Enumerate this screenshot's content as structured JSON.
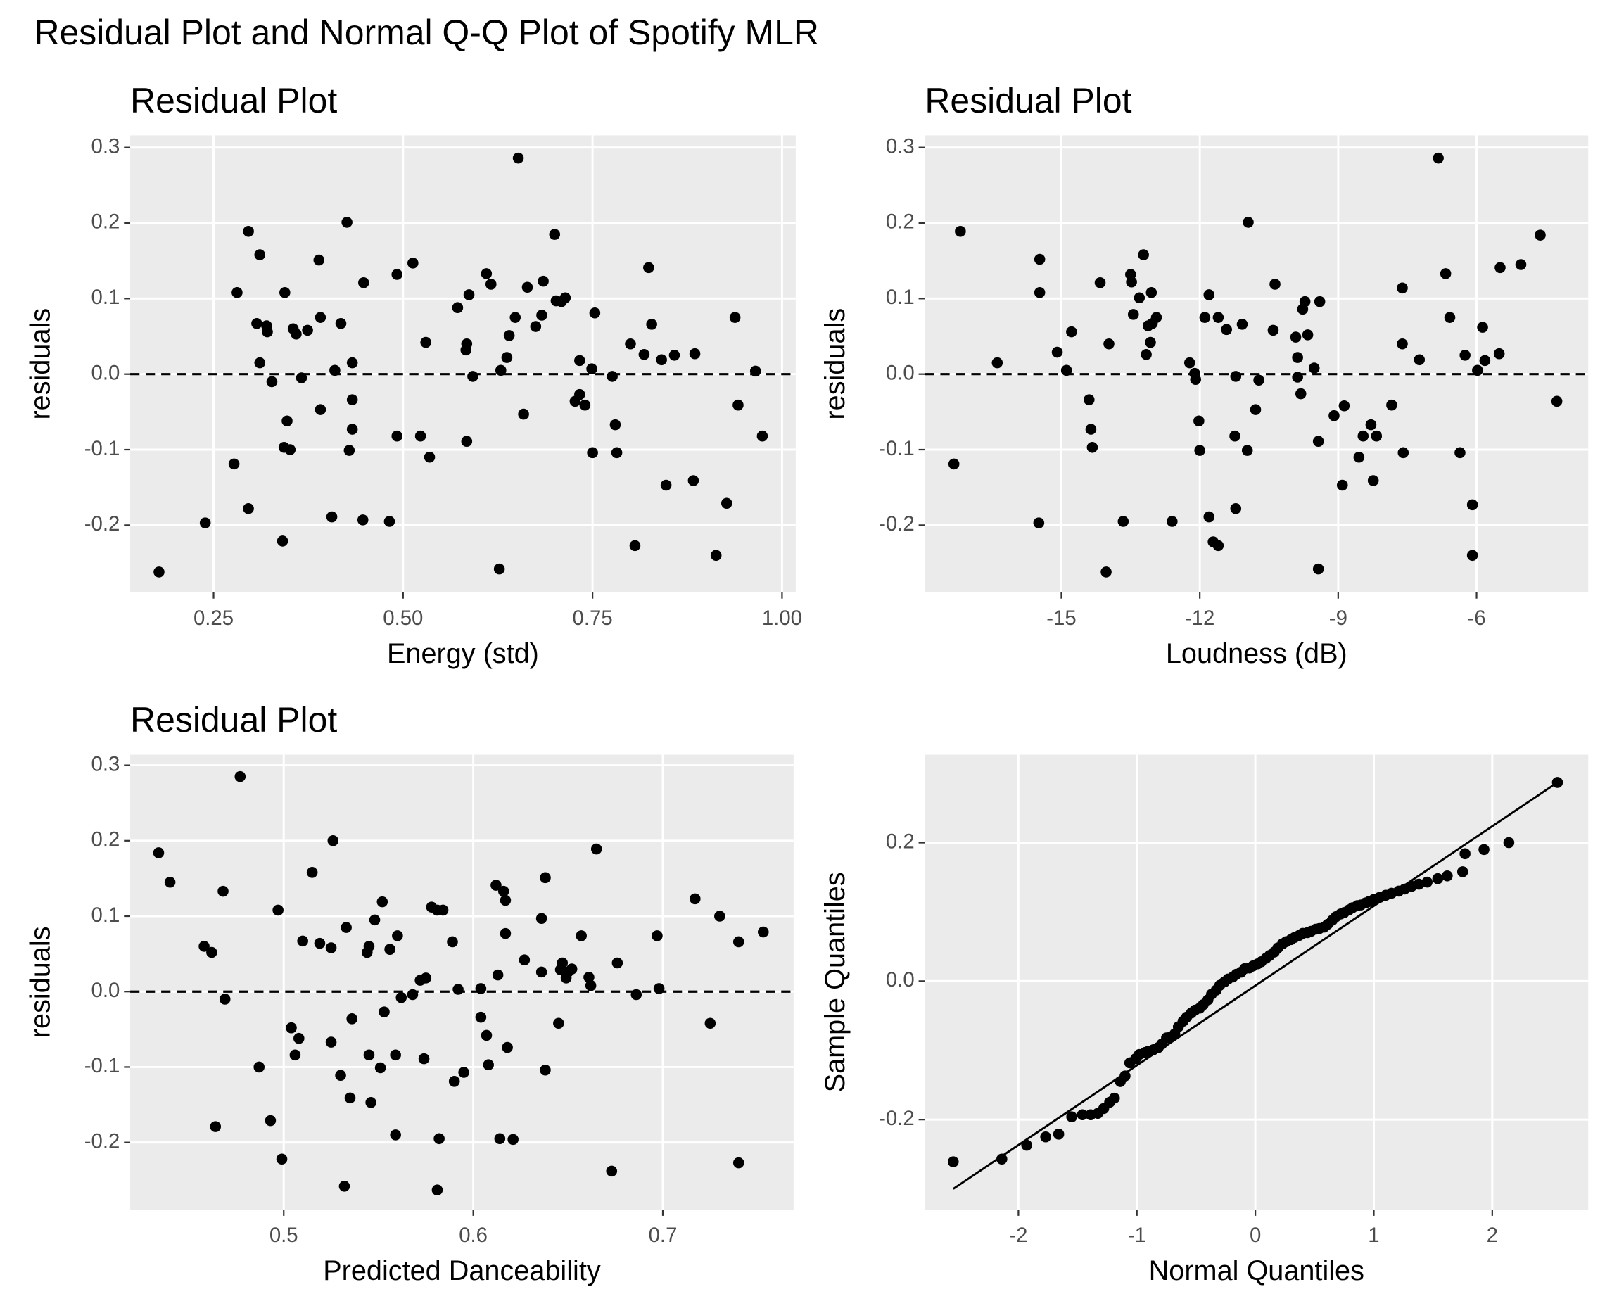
{
  "title": "Residual Plot and Normal Q-Q Plot of Spotify MLR",
  "chart_data": [
    {
      "type": "scatter",
      "title": "Residual Plot",
      "xlabel": "Energy (std)",
      "ylabel": "residuals",
      "color": "#000000",
      "grid": true,
      "hline": 0,
      "xlim": [
        0.14,
        1.018
      ],
      "ylim": [
        -0.289,
        0.316
      ],
      "xticks": [
        {
          "value": 0.25,
          "label": "0.25"
        },
        {
          "value": 0.5,
          "label": "0.50"
        },
        {
          "value": 0.75,
          "label": "0.75"
        },
        {
          "value": 1,
          "label": "1.00"
        }
      ],
      "yticks": [
        -0.2,
        -0.1,
        {
          "value": 0,
          "label": "0.0"
        },
        0.1,
        0.2,
        0.3
      ],
      "x": [
        0.178,
        0.239,
        0.277,
        0.281,
        0.296,
        0.296,
        0.307,
        0.311,
        0.311,
        0.32,
        0.321,
        0.327,
        0.341,
        0.344,
        0.343,
        0.347,
        0.351,
        0.355,
        0.359,
        0.366,
        0.374,
        0.389,
        0.391,
        0.391,
        0.406,
        0.41,
        0.418,
        0.426,
        0.429,
        0.433,
        0.433,
        0.433,
        0.447,
        0.448,
        0.482,
        0.492,
        0.492,
        0.513,
        0.523,
        0.53,
        0.535,
        0.572,
        0.583,
        0.584,
        0.584,
        0.587,
        0.592,
        0.61,
        0.616,
        0.629,
        0.627,
        0.637,
        0.64,
        0.648,
        0.652,
        0.659,
        0.664,
        0.675,
        0.683,
        0.685,
        0.7,
        0.702,
        0.709,
        0.714,
        0.727,
        0.733,
        0.733,
        0.74,
        0.749,
        0.75,
        0.753,
        0.776,
        0.78,
        0.782,
        0.8,
        0.806,
        0.818,
        0.824,
        0.828,
        0.841,
        0.847,
        0.858,
        0.883,
        0.885,
        0.913,
        0.927,
        0.938,
        0.942,
        0.965,
        0.974
      ],
      "values": [
        -0.262,
        -0.197,
        -0.119,
        0.108,
        0.189,
        -0.178,
        0.067,
        0.158,
        0.015,
        0.064,
        0.056,
        -0.01,
        -0.221,
        0.108,
        -0.097,
        -0.062,
        -0.1,
        0.06,
        0.053,
        -0.005,
        0.058,
        0.151,
        0.075,
        -0.047,
        -0.189,
        0.005,
        0.067,
        0.201,
        -0.101,
        0.015,
        -0.034,
        -0.073,
        -0.193,
        0.121,
        -0.195,
        0.132,
        -0.082,
        0.147,
        -0.082,
        0.042,
        -0.11,
        0.088,
        0.032,
        -0.089,
        0.04,
        0.105,
        -0.003,
        0.133,
        0.119,
        0.005,
        -0.258,
        0.022,
        0.051,
        0.075,
        0.286,
        -0.053,
        0.115,
        0.063,
        0.078,
        0.123,
        0.185,
        0.097,
        0.096,
        0.101,
        -0.036,
        -0.027,
        0.018,
        -0.041,
        0.007,
        -0.104,
        0.081,
        -0.003,
        -0.067,
        -0.104,
        0.04,
        -0.227,
        0.026,
        0.141,
        0.066,
        0.019,
        -0.147,
        0.025,
        -0.141,
        0.027,
        -0.24,
        -0.171,
        0.075,
        -0.041,
        0.004,
        -0.082
      ]
    },
    {
      "type": "scatter",
      "title": "Residual Plot",
      "xlabel": "Loudness (dB)",
      "ylabel": "residuals",
      "color": "#000000",
      "grid": true,
      "hline": 0,
      "xlim": [
        -17.96,
        -3.58
      ],
      "ylim": [
        -0.289,
        0.316
      ],
      "xticks": [
        -15,
        -12,
        -9,
        -6
      ],
      "yticks": [
        -0.2,
        -0.1,
        {
          "value": 0,
          "label": "0.0"
        },
        0.1,
        0.2,
        0.3
      ],
      "x": [
        -17.33,
        -17.19,
        -16.39,
        -15.47,
        -15.47,
        -15.49,
        -15.09,
        -14.89,
        -14.78,
        -14.4,
        -14.36,
        -14.33,
        -14.16,
        -14.03,
        -13.97,
        -13.66,
        -13.5,
        -13.48,
        -13.44,
        -13.31,
        -13.22,
        -13.16,
        -13.12,
        -13.07,
        -13.05,
        -13.03,
        -12.94,
        -12.6,
        -12.22,
        -12.11,
        -12.09,
        -12.02,
        -12.0,
        -11.89,
        -11.8,
        -11.8,
        -11.71,
        -11.6,
        -11.6,
        -11.42,
        -11.22,
        -11.24,
        -11.22,
        -11.08,
        -10.97,
        -10.95,
        -10.79,
        -10.72,
        -10.41,
        -10.37,
        -9.92,
        -9.88,
        -9.88,
        -9.81,
        -9.77,
        -9.72,
        -9.66,
        -9.52,
        -9.4,
        -9.43,
        -9.43,
        -9.09,
        -8.91,
        -8.87,
        -8.55,
        -8.46,
        -8.29,
        -8.24,
        -8.17,
        -7.84,
        -7.61,
        -7.61,
        -7.59,
        -7.24,
        -6.83,
        -6.67,
        -6.58,
        -6.36,
        -6.25,
        -6.09,
        -6.09,
        -5.98,
        -5.87,
        -5.82,
        -5.51,
        -5.49,
        -5.04,
        -4.62,
        -4.26
      ],
      "values": [
        -0.119,
        0.189,
        0.015,
        0.152,
        0.108,
        -0.197,
        0.029,
        0.005,
        0.056,
        -0.034,
        -0.073,
        -0.097,
        0.121,
        -0.262,
        0.04,
        -0.195,
        0.132,
        0.122,
        0.079,
        0.101,
        0.158,
        0.026,
        0.064,
        0.042,
        0.108,
        0.067,
        0.075,
        -0.195,
        0.015,
        0.001,
        -0.007,
        -0.062,
        -0.101,
        0.075,
        0.105,
        -0.189,
        -0.222,
        -0.227,
        0.075,
        0.059,
        -0.003,
        -0.082,
        -0.178,
        0.066,
        -0.101,
        0.201,
        -0.047,
        -0.008,
        0.058,
        0.119,
        0.049,
        0.022,
        -0.004,
        -0.026,
        0.086,
        0.096,
        0.052,
        0.008,
        0.096,
        -0.089,
        -0.258,
        -0.055,
        -0.147,
        -0.042,
        -0.11,
        -0.082,
        -0.067,
        -0.141,
        -0.082,
        -0.041,
        0.114,
        0.04,
        -0.104,
        0.019,
        0.286,
        0.133,
        0.075,
        -0.104,
        0.025,
        -0.173,
        -0.24,
        0.005,
        0.062,
        0.018,
        0.027,
        0.141,
        0.145,
        0.184,
        -0.036
      ]
    },
    {
      "type": "scatter",
      "title": "Residual Plot",
      "xlabel": "Predicted Danceability",
      "ylabel": "residuals",
      "color": "#000000",
      "grid": true,
      "hline": 0,
      "xlim": [
        0.419,
        0.769
      ],
      "ylim": [
        -0.289,
        0.314
      ],
      "xticks": [
        0.5,
        0.6,
        0.7
      ],
      "yticks": [
        -0.2,
        -0.1,
        {
          "value": 0,
          "label": "0.0"
        },
        0.1,
        0.2,
        0.3
      ],
      "x": [
        0.434,
        0.44,
        0.458,
        0.462,
        0.464,
        0.468,
        0.469,
        0.477,
        0.487,
        0.493,
        0.497,
        0.499,
        0.504,
        0.506,
        0.508,
        0.51,
        0.515,
        0.519,
        0.525,
        0.525,
        0.526,
        0.53,
        0.532,
        0.533,
        0.536,
        0.535,
        0.544,
        0.545,
        0.545,
        0.546,
        0.548,
        0.551,
        0.552,
        0.553,
        0.556,
        0.559,
        0.559,
        0.56,
        0.562,
        0.568,
        0.572,
        0.574,
        0.575,
        0.578,
        0.581,
        0.582,
        0.581,
        0.584,
        0.589,
        0.59,
        0.592,
        0.595,
        0.604,
        0.604,
        0.607,
        0.608,
        0.613,
        0.614,
        0.612,
        0.616,
        0.617,
        0.617,
        0.618,
        0.621,
        0.627,
        0.636,
        0.636,
        0.638,
        0.638,
        0.645,
        0.646,
        0.647,
        0.649,
        0.65,
        0.652,
        0.657,
        0.661,
        0.662,
        0.665,
        0.673,
        0.676,
        0.686,
        0.697,
        0.698,
        0.717,
        0.725,
        0.73,
        0.74,
        0.74,
        0.753
      ],
      "values": [
        0.184,
        0.145,
        0.06,
        0.052,
        -0.179,
        0.133,
        -0.01,
        0.285,
        -0.1,
        -0.171,
        0.108,
        -0.222,
        -0.048,
        -0.084,
        -0.062,
        0.067,
        0.158,
        0.064,
        0.058,
        -0.067,
        0.2,
        -0.111,
        -0.258,
        0.085,
        -0.036,
        -0.141,
        0.052,
        -0.084,
        0.06,
        -0.147,
        0.095,
        -0.101,
        0.119,
        -0.027,
        0.056,
        -0.084,
        -0.19,
        0.074,
        -0.008,
        -0.004,
        0.015,
        -0.089,
        0.018,
        0.112,
        -0.263,
        -0.195,
        0.108,
        0.108,
        0.066,
        -0.119,
        0.003,
        -0.107,
        -0.034,
        0.004,
        -0.058,
        -0.097,
        0.022,
        -0.195,
        0.141,
        0.133,
        0.121,
        0.077,
        -0.074,
        -0.196,
        0.042,
        0.026,
        0.097,
        -0.104,
        0.151,
        -0.042,
        0.029,
        0.038,
        0.018,
        0.026,
        0.03,
        0.074,
        0.019,
        0.008,
        0.189,
        -0.238,
        0.038,
        -0.004,
        0.074,
        0.004,
        0.123,
        -0.042,
        0.1,
        0.066,
        -0.227,
        0.079
      ]
    },
    {
      "type": "scatter",
      "xlabel": "Normal Quantiles",
      "ylabel": "Sample Quantiles",
      "color": "#000000",
      "grid": true,
      "xlim": [
        -2.79,
        2.81
      ],
      "ylim": [
        -0.33,
        0.327
      ],
      "xticks": [
        -2,
        -1,
        0,
        1,
        2
      ],
      "yticks": [
        -0.2,
        {
          "value": 0,
          "label": "0.0"
        },
        0.2
      ],
      "ref_line": {
        "x": [
          -2.55,
          2.55
        ],
        "values": [
          -0.3,
          0.287
        ]
      },
      "x": [
        -2.55,
        -2.14,
        -1.93,
        -1.77,
        -1.66,
        -1.55,
        -1.46,
        -1.39,
        -1.33,
        -1.28,
        -1.23,
        -1.19,
        -1.14,
        -1.1,
        -1.06,
        -1.01,
        -0.98,
        -0.93,
        -0.9,
        -0.86,
        -0.82,
        -0.79,
        -0.75,
        -0.72,
        -0.68,
        -0.65,
        -0.61,
        -0.58,
        -0.54,
        -0.51,
        -0.47,
        -0.44,
        -0.4,
        -0.37,
        -0.33,
        -0.3,
        -0.26,
        -0.23,
        -0.19,
        -0.16,
        -0.12,
        -0.09,
        -0.05,
        -0.02,
        0.02,
        0.05,
        0.09,
        0.12,
        0.16,
        0.19,
        0.23,
        0.26,
        0.3,
        0.33,
        0.37,
        0.4,
        0.44,
        0.47,
        0.51,
        0.54,
        0.58,
        0.61,
        0.65,
        0.68,
        0.72,
        0.75,
        0.79,
        0.82,
        0.86,
        0.89,
        0.93,
        0.96,
        1.0,
        1.05,
        1.1,
        1.15,
        1.21,
        1.26,
        1.32,
        1.38,
        1.45,
        1.54,
        1.62,
        1.75,
        1.77,
        1.93,
        2.14,
        2.55
      ],
      "values": [
        -0.261,
        -0.257,
        -0.237,
        -0.225,
        -0.221,
        -0.196,
        -0.193,
        -0.193,
        -0.191,
        -0.184,
        -0.175,
        -0.169,
        -0.145,
        -0.137,
        -0.118,
        -0.112,
        -0.106,
        -0.103,
        -0.101,
        -0.099,
        -0.096,
        -0.091,
        -0.082,
        -0.081,
        -0.076,
        -0.066,
        -0.058,
        -0.052,
        -0.046,
        -0.042,
        -0.039,
        -0.034,
        -0.027,
        -0.019,
        -0.013,
        -0.006,
        -0.001,
        0.003,
        0.006,
        0.01,
        0.013,
        0.018,
        0.019,
        0.022,
        0.025,
        0.028,
        0.033,
        0.037,
        0.042,
        0.048,
        0.054,
        0.057,
        0.06,
        0.063,
        0.066,
        0.069,
        0.07,
        0.072,
        0.075,
        0.076,
        0.078,
        0.082,
        0.088,
        0.093,
        0.097,
        0.099,
        0.103,
        0.106,
        0.109,
        0.11,
        0.113,
        0.115,
        0.118,
        0.121,
        0.124,
        0.127,
        0.13,
        0.133,
        0.137,
        0.14,
        0.143,
        0.148,
        0.152,
        0.158,
        0.184,
        0.19,
        0.2,
        0.287
      ]
    }
  ]
}
